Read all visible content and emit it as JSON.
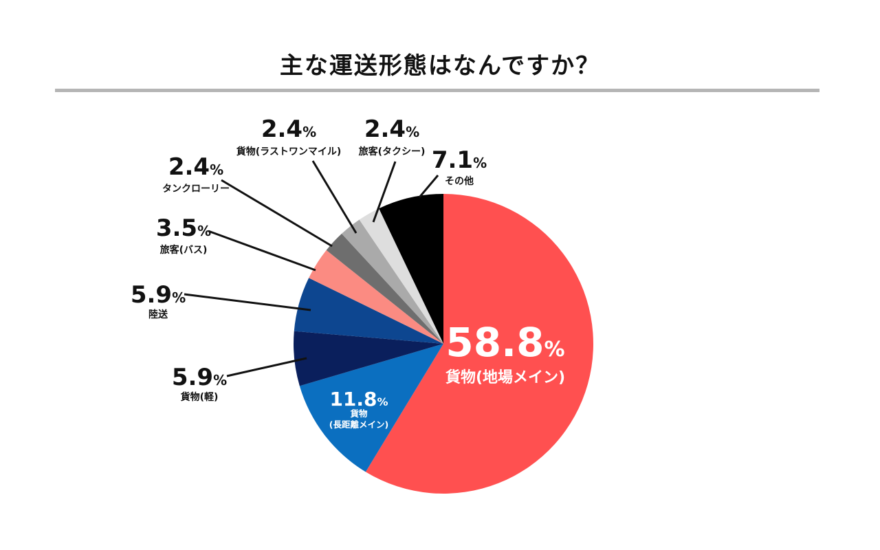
{
  "title": "主な運送形態はなんですか？",
  "chart_data": {
    "type": "pie",
    "unit": "%",
    "slices": [
      {
        "label": "貨物(地場メイン)",
        "value": 58.8,
        "value_text": "58.8",
        "color": "#ff5050"
      },
      {
        "label": "貨物\n(長距離メイン)",
        "value": 11.8,
        "value_text": "11.8",
        "color": "#0b6fc0"
      },
      {
        "label": "貨物(軽)",
        "value": 5.9,
        "value_text": "5.9",
        "color": "#0a1f5c"
      },
      {
        "label": "陸送",
        "value": 5.9,
        "value_text": "5.9",
        "color": "#0d4690"
      },
      {
        "label": "旅客(バス)",
        "value": 3.5,
        "value_text": "3.5",
        "color": "#fb8b82"
      },
      {
        "label": "タンクローリー",
        "value": 2.4,
        "value_text": "2.4",
        "color": "#6e6e6e"
      },
      {
        "label": "貨物(ラストワンマイル)",
        "value": 2.4,
        "value_text": "2.4",
        "color": "#aaaaaa"
      },
      {
        "label": "旅客(タクシー)",
        "value": 2.4,
        "value_text": "2.4",
        "color": "#dedede"
      },
      {
        "label": "その他",
        "value": 7.1,
        "value_text": "7.1",
        "color": "#000000"
      }
    ]
  }
}
